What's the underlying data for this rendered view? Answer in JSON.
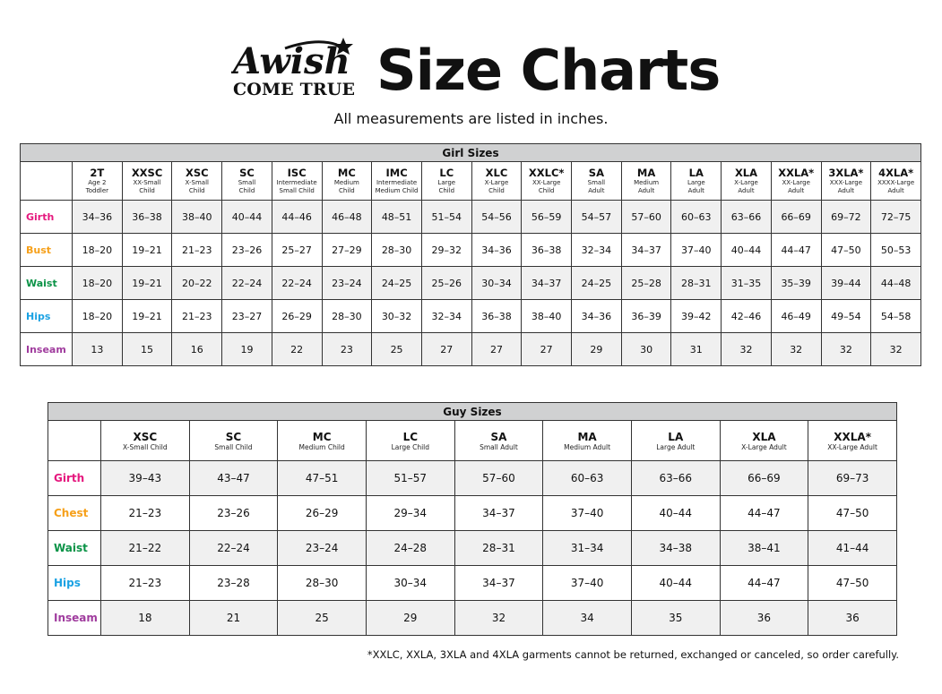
{
  "header": {
    "logo_text": "A Wish Come True",
    "title": "Size Charts",
    "subtitle": "All measurements are listed in inches."
  },
  "colors": {
    "Girth": "#e5187e",
    "Bust": "#f6a01a",
    "Chest": "#f6a01a",
    "Waist": "#0b9347",
    "Hips": "#1ba2e3",
    "Inseam": "#a03c9e"
  },
  "girl": {
    "title": "Girl Sizes",
    "sizes": [
      {
        "code": "2T",
        "desc": [
          "Age 2",
          "Toddler"
        ]
      },
      {
        "code": "XXSC",
        "desc": [
          "XX-Small",
          "Child"
        ]
      },
      {
        "code": "XSC",
        "desc": [
          "X-Small",
          "Child"
        ]
      },
      {
        "code": "SC",
        "desc": [
          "Small",
          "Child"
        ]
      },
      {
        "code": "ISC",
        "desc": [
          "Intermediate",
          "Small Child"
        ]
      },
      {
        "code": "MC",
        "desc": [
          "Medium",
          "Child"
        ]
      },
      {
        "code": "IMC",
        "desc": [
          "Intermediate",
          "Medium Child"
        ]
      },
      {
        "code": "LC",
        "desc": [
          "Large",
          "Child"
        ]
      },
      {
        "code": "XLC",
        "desc": [
          "X-Large",
          "Child"
        ]
      },
      {
        "code": "XXLC*",
        "desc": [
          "XX-Large",
          "Child"
        ]
      },
      {
        "code": "SA",
        "desc": [
          "Small",
          "Adult"
        ]
      },
      {
        "code": "MA",
        "desc": [
          "Medium",
          "Adult"
        ]
      },
      {
        "code": "LA",
        "desc": [
          "Large",
          "Adult"
        ]
      },
      {
        "code": "XLA",
        "desc": [
          "X-Large",
          "Adult"
        ]
      },
      {
        "code": "XXLA*",
        "desc": [
          "XX-Large",
          "Adult"
        ]
      },
      {
        "code": "3XLA*",
        "desc": [
          "XXX-Large",
          "Adult"
        ]
      },
      {
        "code": "4XLA*",
        "desc": [
          "XXXX-Large",
          "Adult"
        ]
      }
    ],
    "rows": [
      {
        "label": "Girth",
        "values": [
          "34–36",
          "36–38",
          "38–40",
          "40–44",
          "44–46",
          "46–48",
          "48–51",
          "51–54",
          "54–56",
          "56–59",
          "54–57",
          "57–60",
          "60–63",
          "63–66",
          "66–69",
          "69–72",
          "72–75"
        ]
      },
      {
        "label": "Bust",
        "values": [
          "18–20",
          "19–21",
          "21–23",
          "23–26",
          "25–27",
          "27–29",
          "28–30",
          "29–32",
          "34–36",
          "36–38",
          "32–34",
          "34–37",
          "37–40",
          "40–44",
          "44–47",
          "47–50",
          "50–53"
        ]
      },
      {
        "label": "Waist",
        "values": [
          "18–20",
          "19–21",
          "20–22",
          "22–24",
          "22–24",
          "23–24",
          "24–25",
          "25–26",
          "30–34",
          "34–37",
          "24–25",
          "25–28",
          "28–31",
          "31–35",
          "35–39",
          "39–44",
          "44–48"
        ]
      },
      {
        "label": "Hips",
        "values": [
          "18–20",
          "19–21",
          "21–23",
          "23–27",
          "26–29",
          "28–30",
          "30–32",
          "32–34",
          "36–38",
          "38–40",
          "34–36",
          "36–39",
          "39–42",
          "42–46",
          "46–49",
          "49–54",
          "54–58"
        ]
      },
      {
        "label": "Inseam",
        "values": [
          "13",
          "15",
          "16",
          "19",
          "22",
          "23",
          "25",
          "27",
          "27",
          "27",
          "29",
          "30",
          "31",
          "32",
          "32",
          "32",
          "32"
        ]
      }
    ]
  },
  "guy": {
    "title": "Guy Sizes",
    "sizes": [
      {
        "code": "XSC",
        "desc": [
          "X-Small Child"
        ]
      },
      {
        "code": "SC",
        "desc": [
          "Small Child"
        ]
      },
      {
        "code": "MC",
        "desc": [
          "Medium Child"
        ]
      },
      {
        "code": "LC",
        "desc": [
          "Large Child"
        ]
      },
      {
        "code": "SA",
        "desc": [
          "Small Adult"
        ]
      },
      {
        "code": "MA",
        "desc": [
          "Medium Adult"
        ]
      },
      {
        "code": "LA",
        "desc": [
          "Large Adult"
        ]
      },
      {
        "code": "XLA",
        "desc": [
          "X-Large Adult"
        ]
      },
      {
        "code": "XXLA*",
        "desc": [
          "XX-Large Adult"
        ]
      }
    ],
    "rows": [
      {
        "label": "Girth",
        "values": [
          "39–43",
          "43–47",
          "47–51",
          "51–57",
          "57–60",
          "60–63",
          "63–66",
          "66–69",
          "69–73"
        ]
      },
      {
        "label": "Chest",
        "values": [
          "21–23",
          "23–26",
          "26–29",
          "29–34",
          "34–37",
          "37–40",
          "40–44",
          "44–47",
          "47–50"
        ]
      },
      {
        "label": "Waist",
        "values": [
          "21–22",
          "22–24",
          "23–24",
          "24–28",
          "28–31",
          "31–34",
          "34–38",
          "38–41",
          "41–44"
        ]
      },
      {
        "label": "Hips",
        "values": [
          "21–23",
          "23–28",
          "28–30",
          "30–34",
          "34–37",
          "37–40",
          "40–44",
          "44–47",
          "47–50"
        ]
      },
      {
        "label": "Inseam",
        "values": [
          "18",
          "21",
          "25",
          "29",
          "32",
          "34",
          "35",
          "36",
          "36"
        ]
      }
    ]
  },
  "footnote": "*XXLC, XXLA, 3XLA and 4XLA garments cannot be returned, exchanged or canceled, so order carefully."
}
